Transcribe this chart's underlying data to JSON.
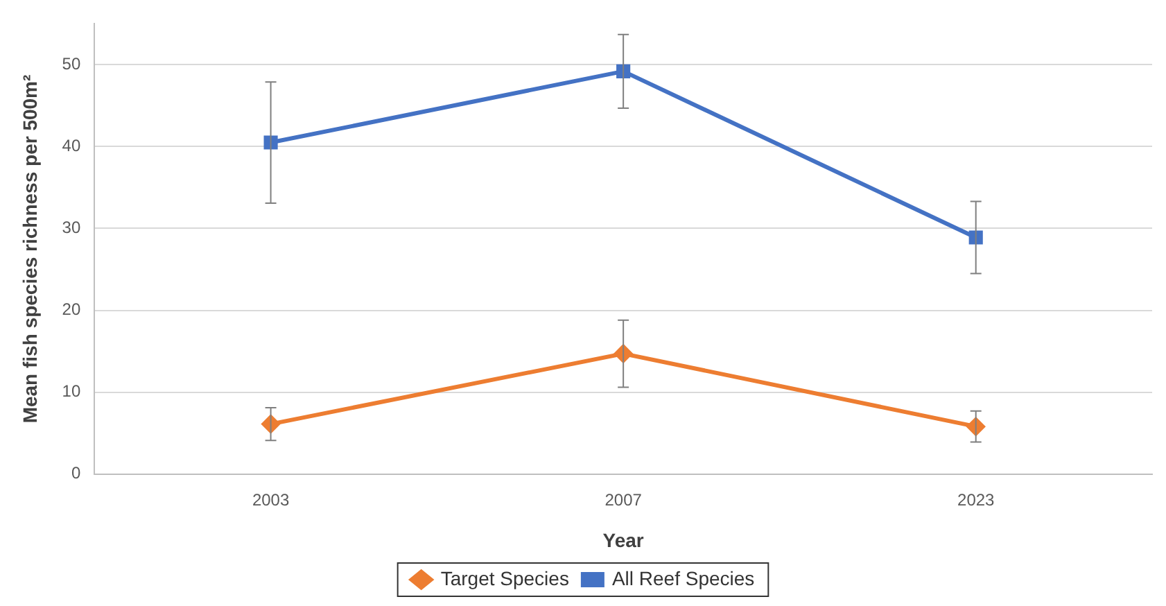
{
  "chart_data": {
    "type": "line",
    "xlabel": "Year",
    "ylabel": "Mean fish species richness per 500m²",
    "categories": [
      "2003",
      "2007",
      "2023"
    ],
    "series": [
      {
        "name": "Target Species",
        "color": "#ed7d31",
        "marker": "diamond",
        "values": [
          6.1,
          14.7,
          5.8
        ],
        "errors": [
          2.0,
          4.1,
          1.9
        ]
      },
      {
        "name": "All Reef Species",
        "color": "#4472c4",
        "marker": "square",
        "values": [
          40.5,
          49.2,
          28.9
        ],
        "errors": [
          7.4,
          4.5,
          4.4
        ]
      }
    ],
    "ylim": [
      0,
      55
    ],
    "yticks": [
      0,
      10,
      20,
      30,
      40,
      50
    ],
    "grid": "y",
    "legend": "bottom",
    "line_style": "solid"
  }
}
